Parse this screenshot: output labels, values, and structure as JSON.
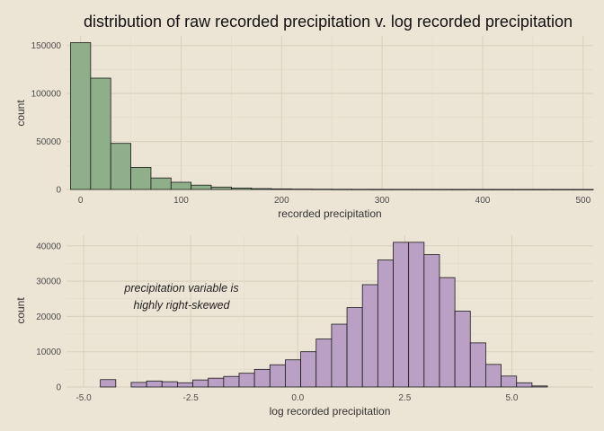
{
  "title": "distribution of raw recorded precipitation v. log recorded precipitation",
  "colors": {
    "background": "#ece4d4",
    "bar_top": "#8faf8a",
    "bar_bottom": "#bba0c6",
    "bar_outline": "#1a1a1a"
  },
  "chart_data": [
    {
      "type": "bar",
      "subtype": "histogram",
      "xlabel": "recorded precipitation",
      "ylabel": "count",
      "xlim": [
        -14,
        510
      ],
      "ylim": [
        0,
        160000
      ],
      "xticks": [
        0,
        100,
        200,
        300,
        400,
        500
      ],
      "xtick_labels": [
        "0",
        "100",
        "200",
        "300",
        "400",
        "500"
      ],
      "yticks": [
        0,
        50000,
        100000,
        150000
      ],
      "ytick_labels": [
        "0",
        "50000",
        "100000",
        "150000"
      ],
      "bin_width": 20,
      "bin_start": -10,
      "values": [
        153000,
        116000,
        48000,
        23000,
        12000,
        7500,
        4500,
        2500,
        1500,
        900,
        600,
        400,
        280,
        200,
        150,
        120,
        100,
        80,
        70,
        60,
        50,
        40,
        35,
        30,
        25,
        20
      ],
      "grid": true,
      "legend": "none"
    },
    {
      "type": "bar",
      "subtype": "histogram",
      "xlabel": "log recorded precipitation",
      "ylabel": "count",
      "xlim": [
        -5.4,
        6.9
      ],
      "ylim": [
        0,
        43000
      ],
      "xticks": [
        -5.0,
        -2.5,
        0.0,
        2.5,
        5.0
      ],
      "xtick_labels": [
        "-5.0",
        "-2.5",
        "0.0",
        "2.5",
        "5.0"
      ],
      "yticks": [
        0,
        10000,
        20000,
        30000,
        40000
      ],
      "ytick_labels": [
        "0",
        "10000",
        "20000",
        "30000",
        "40000"
      ],
      "bin_width": 0.36,
      "bin_start": -4.61,
      "values": [
        2100,
        0,
        1300,
        1700,
        1500,
        1200,
        2000,
        2500,
        3000,
        3900,
        5000,
        6300,
        7700,
        10000,
        13600,
        17800,
        22500,
        29000,
        36000,
        41000,
        41000,
        37500,
        31000,
        21500,
        12500,
        6400,
        3100,
        1200,
        300
      ],
      "annotation": [
        "precipitation variable is",
        "highly right-skewed"
      ],
      "grid": true,
      "legend": "none"
    }
  ]
}
